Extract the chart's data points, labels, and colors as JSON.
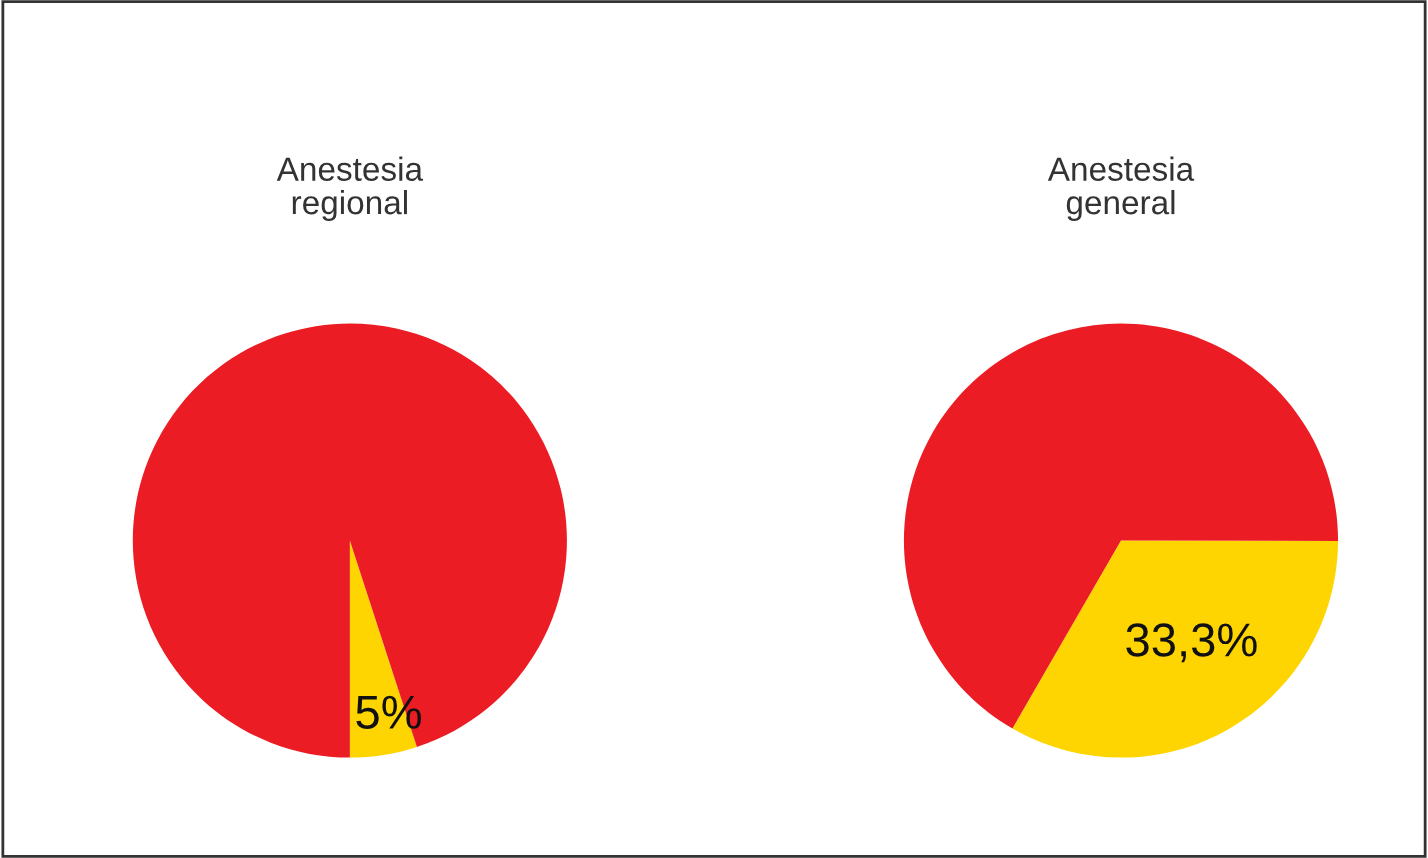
{
  "chart_data": [
    {
      "type": "pie",
      "title": "Anestesia\nregional",
      "categories": [
        null,
        null
      ],
      "values": [
        5,
        95
      ],
      "colors": [
        "#fed500",
        "#ec1c24"
      ],
      "value_labels": [
        "5%",
        null
      ]
    },
    {
      "type": "pie",
      "title": "Anestesia\ngeneral",
      "categories": [
        null,
        null
      ],
      "values": [
        33.3,
        66.7
      ],
      "colors": [
        "#fed500",
        "#ec1c24"
      ],
      "value_labels": [
        "33,3%",
        null
      ]
    }
  ]
}
